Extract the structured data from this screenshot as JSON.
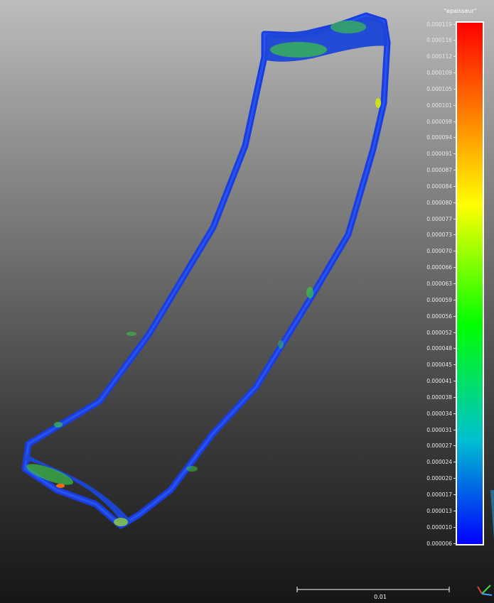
{
  "scalar_bar": {
    "title": "\"epaisseur\"",
    "ticks": [
      "0.000119",
      "0.000116",
      "0.000112",
      "0.000109",
      "0.000105",
      "0.000101",
      "0.000098",
      "0.000094",
      "0.000091",
      "0.000087",
      "0.000084",
      "0.000080",
      "0.000077",
      "0.000073",
      "0.000070",
      "0.000066",
      "0.000063",
      "0.000059",
      "0.000056",
      "0.000052",
      "0.000048",
      "0.000045",
      "0.000041",
      "0.000038",
      "0.000034",
      "0.000031",
      "0.000027",
      "0.000024",
      "0.000020",
      "0.000017",
      "0.000013",
      "0.000010",
      "0.000006"
    ],
    "colormap": [
      "#ff0000",
      "#ff7a00",
      "#ffff00",
      "#00ff00",
      "#00c8c8",
      "#0000ff"
    ],
    "range": [
      6e-06,
      0.000119
    ]
  },
  "scale_bar": {
    "label": "0.01"
  },
  "colors": {
    "object_blue": "#1a3de0",
    "object_green": "#3bbf4a",
    "object_yellow": "#c9e020"
  },
  "icons": {
    "axis_triad": "axis-triad-icon"
  }
}
